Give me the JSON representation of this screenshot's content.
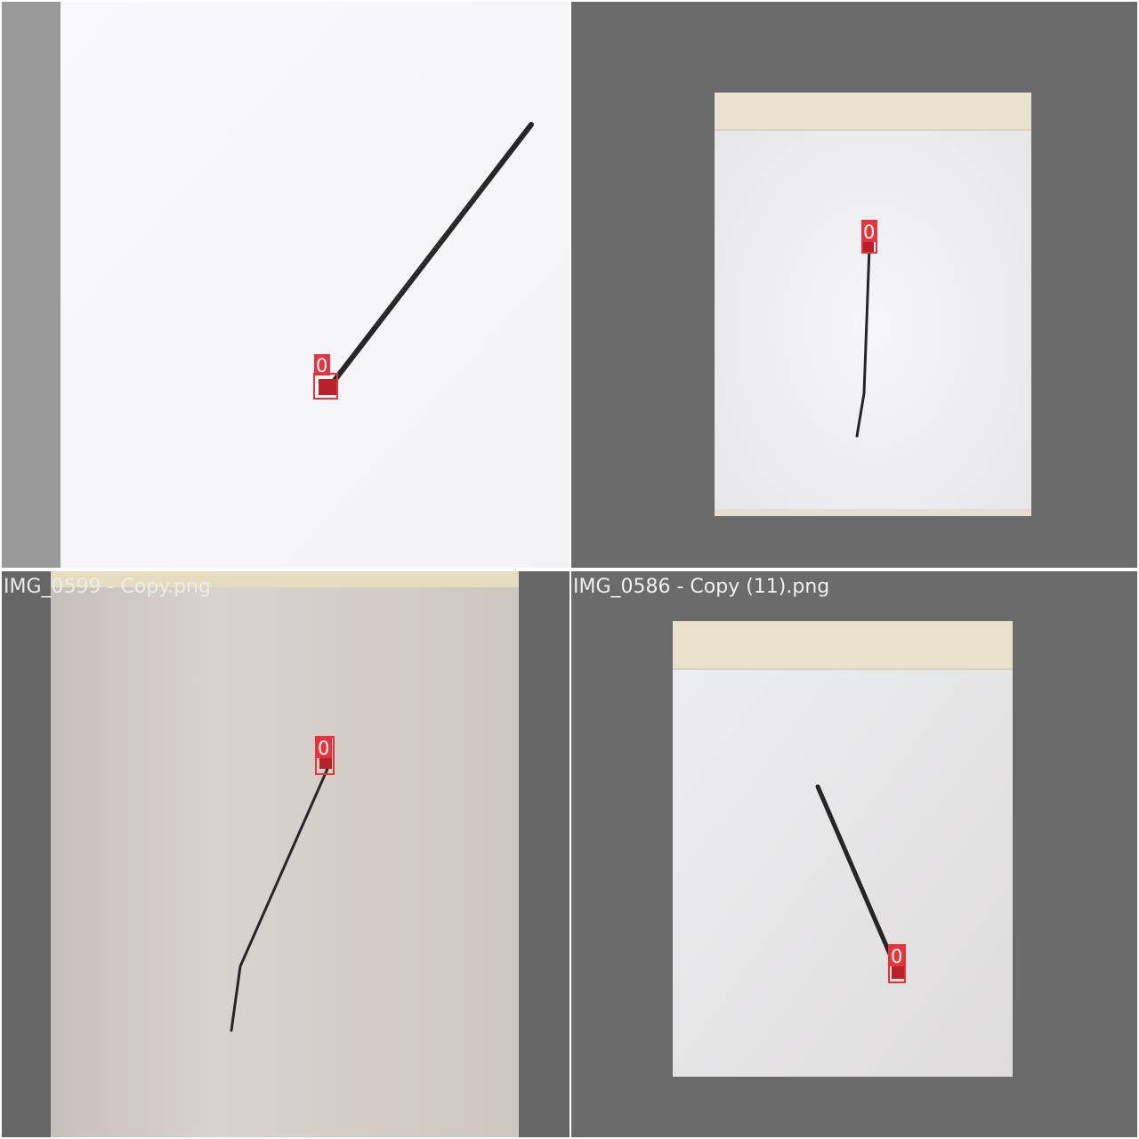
{
  "colors": {
    "detection_box": "#e8333a",
    "detection_label_text": "#ffffff",
    "grey_letterbox": "#6b6b6b",
    "light_grey_letterbox": "#9a9a9a",
    "paper_white": "#f7f7f9",
    "wood_strip": "#e9e2cf",
    "cable_tie": "#1e1e1e"
  },
  "tiles": [
    {
      "position": "top-left",
      "caption": "",
      "detections": [
        {
          "class_label": "0"
        }
      ]
    },
    {
      "position": "top-right",
      "caption": "",
      "detections": [
        {
          "class_label": "0"
        }
      ]
    },
    {
      "position": "bottom-left",
      "caption": "IMG_0599 - Copy.png",
      "detections": [
        {
          "class_label": "0"
        }
      ]
    },
    {
      "position": "bottom-right",
      "caption": "IMG_0586 - Copy (11).png",
      "detections": [
        {
          "class_label": "0"
        }
      ]
    }
  ]
}
